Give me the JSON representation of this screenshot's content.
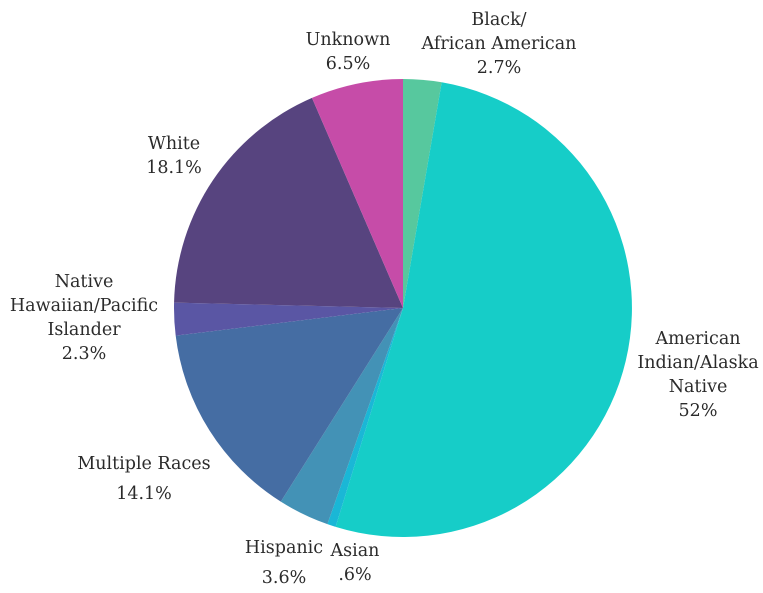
{
  "chart_data": {
    "type": "pie",
    "start_angle_deg": 0,
    "direction": "clockwise",
    "legend": "none",
    "slices": [
      {
        "label_lines": [
          "Black/",
          "African American"
        ],
        "value_label": "2.7%",
        "value": 2.7,
        "color": "#57c89e"
      },
      {
        "label_lines": [
          "American",
          "Indian/Alaska",
          "Native"
        ],
        "value_label": "52%",
        "value": 52.0,
        "color": "#16cdc8"
      },
      {
        "label_lines": [
          "Asian"
        ],
        "value_label": ".6%",
        "value": 0.6,
        "color": "#1ab7d6"
      },
      {
        "label_lines": [
          "Hispanic"
        ],
        "value_label": "3.6%",
        "value": 3.6,
        "color": "#4392b6"
      },
      {
        "label_lines": [
          "Multiple Races"
        ],
        "value_label": "14.1%",
        "value": 14.1,
        "color": "#456da3"
      },
      {
        "label_lines": [
          "Native",
          "Hawaiian/Pacific",
          "Islander"
        ],
        "value_label": "2.3%",
        "value": 2.3,
        "color": "#5a56a4"
      },
      {
        "label_lines": [
          "White"
        ],
        "value_label": "18.1%",
        "value": 18.1,
        "color": "#57447f"
      },
      {
        "label_lines": [
          "Unknown"
        ],
        "value_label": "6.5%",
        "value": 6.5,
        "color": "#c64ca8"
      }
    ]
  }
}
